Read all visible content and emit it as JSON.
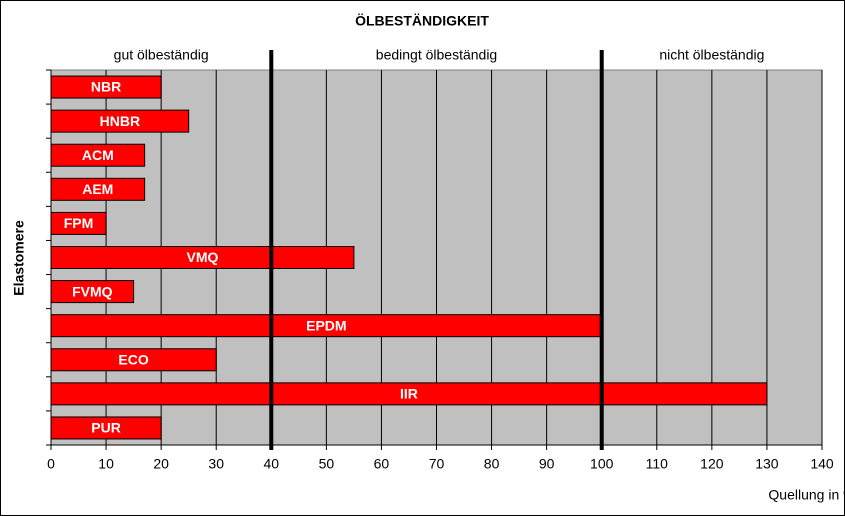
{
  "chart_data": {
    "type": "bar",
    "orientation": "horizontal",
    "title": "ÖLBESTÄNDIGKEIT",
    "categories": [
      "NBR",
      "HNBR",
      "ACM",
      "AEM",
      "FPM",
      "VMQ",
      "FVMQ",
      "EPDM",
      "ECO",
      "IIR",
      "PUR"
    ],
    "values": [
      20,
      25,
      17,
      17,
      10,
      55,
      15,
      100,
      30,
      130,
      20
    ],
    "color": "#ff0000",
    "xlim": [
      0,
      140
    ],
    "xticks": [
      0,
      10,
      20,
      30,
      40,
      50,
      60,
      70,
      80,
      90,
      100,
      110,
      120,
      130,
      140
    ],
    "grid": true,
    "xlabel": "Quellung  in %",
    "ylabel": "Elastomere",
    "zones": [
      {
        "label": "gut ölbeständig",
        "from": 0,
        "to": 40
      },
      {
        "label": "bedingt ölbeständig",
        "from": 40,
        "to": 100
      },
      {
        "label": "nicht ölbeständig",
        "from": 100,
        "to": 140
      }
    ]
  }
}
